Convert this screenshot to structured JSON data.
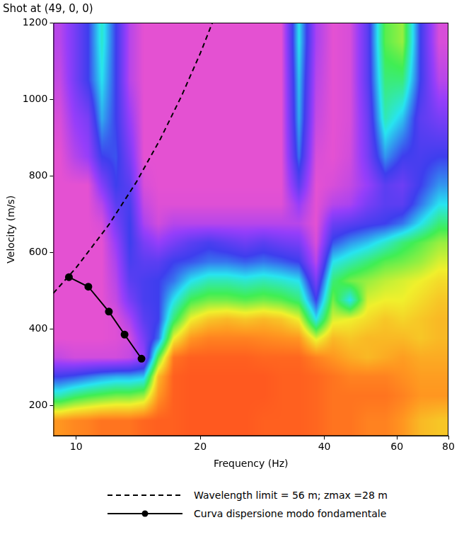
{
  "chart_data": {
    "type": "heatmap",
    "title": "Shot at (49, 0, 0)",
    "x_label": "Frequency (Hz)",
    "y_label": "Velocity (m/s)",
    "log": "x",
    "grid": false,
    "legend": "bottom",
    "xlim": [
      8.8,
      80
    ],
    "xticks": [
      10,
      20,
      40,
      60,
      80
    ],
    "ylim": [
      120,
      1200
    ],
    "yticks": [
      200,
      400,
      600,
      800,
      1000,
      1200
    ],
    "series": [
      {
        "name": "Wavelength limit = 56 m; zmax =28 m",
        "type": "line",
        "color": "#000000",
        "line_style": "dashed",
        "marker": "none",
        "x": [
          8.8,
          10,
          12,
          14,
          16,
          18,
          20,
          21.4
        ],
        "values": [
          493,
          560,
          672,
          784,
          896,
          1008,
          1120,
          1200
        ]
      },
      {
        "name": "Curva dispersione modo fondamentale",
        "type": "line",
        "color": "#000000",
        "line_style": "solid",
        "marker": "circle",
        "x": [
          9.6,
          10.7,
          12.0,
          13.1,
          14.4
        ],
        "values": [
          535,
          510,
          445,
          385,
          322
        ]
      }
    ],
    "heatmap": {
      "x_edges": [
        8.8,
        9.5,
        10.3,
        11.1,
        12,
        13,
        14,
        15.2,
        16.5,
        18,
        20,
        22,
        24.5,
        27,
        30,
        33,
        36.5,
        40,
        44,
        48.5,
        53.5,
        59,
        65,
        72,
        80
      ],
      "y_edges": [
        120,
        200,
        250,
        300,
        350,
        400,
        450,
        500,
        550,
        600,
        650,
        700,
        750,
        800,
        900,
        1000,
        1100,
        1200
      ],
      "value_range": [
        0,
        1
      ],
      "values": [
        [
          0.85,
          0.87,
          0.88,
          0.9,
          0.9,
          0.9,
          0.92,
          0.93,
          0.93,
          0.94,
          0.94,
          0.94,
          0.94,
          0.93,
          0.93,
          0.93,
          0.92,
          0.9,
          0.9,
          0.88,
          0.88,
          0.85,
          0.8,
          0.78
        ],
        [
          0.5,
          0.55,
          0.58,
          0.6,
          0.62,
          0.62,
          0.65,
          0.85,
          0.93,
          0.94,
          0.94,
          0.94,
          0.94,
          0.94,
          0.93,
          0.93,
          0.92,
          0.9,
          0.9,
          0.9,
          0.9,
          0.88,
          0.85,
          0.85
        ],
        [
          0.3,
          0.32,
          0.35,
          0.38,
          0.4,
          0.4,
          0.42,
          0.8,
          0.93,
          0.94,
          0.94,
          0.94,
          0.94,
          0.94,
          0.93,
          0.93,
          0.92,
          0.9,
          0.88,
          0.88,
          0.88,
          0.86,
          0.84,
          0.84
        ],
        [
          0.08,
          0.06,
          0.06,
          0.06,
          0.06,
          0.08,
          0.15,
          0.6,
          0.9,
          0.93,
          0.93,
          0.93,
          0.93,
          0.92,
          0.92,
          0.92,
          0.88,
          0.85,
          0.82,
          0.8,
          0.82,
          0.84,
          0.82,
          0.82
        ],
        [
          0.03,
          0.03,
          0.03,
          0.03,
          0.04,
          0.06,
          0.2,
          0.35,
          0.72,
          0.85,
          0.88,
          0.88,
          0.88,
          0.87,
          0.86,
          0.85,
          0.7,
          0.8,
          0.78,
          0.8,
          0.8,
          0.8,
          0.78,
          0.8
        ],
        [
          0.03,
          0.03,
          0.03,
          0.03,
          0.04,
          0.12,
          0.25,
          0.3,
          0.55,
          0.72,
          0.78,
          0.8,
          0.78,
          0.8,
          0.78,
          0.72,
          0.45,
          0.7,
          0.72,
          0.75,
          0.78,
          0.76,
          0.78,
          0.8
        ],
        [
          0.03,
          0.03,
          0.03,
          0.03,
          0.08,
          0.2,
          0.28,
          0.3,
          0.45,
          0.58,
          0.62,
          0.62,
          0.6,
          0.62,
          0.6,
          0.55,
          0.3,
          0.62,
          0.45,
          0.7,
          0.72,
          0.72,
          0.75,
          0.78
        ],
        [
          0.03,
          0.03,
          0.03,
          0.03,
          0.1,
          0.25,
          0.28,
          0.3,
          0.35,
          0.45,
          0.5,
          0.5,
          0.48,
          0.5,
          0.48,
          0.45,
          0.2,
          0.55,
          0.62,
          0.65,
          0.68,
          0.7,
          0.72,
          0.75
        ],
        [
          0.03,
          0.03,
          0.03,
          0.03,
          0.12,
          0.28,
          0.25,
          0.25,
          0.3,
          0.32,
          0.35,
          0.35,
          0.33,
          0.35,
          0.33,
          0.3,
          0.1,
          0.45,
          0.5,
          0.55,
          0.6,
          0.62,
          0.65,
          0.7
        ],
        [
          0.03,
          0.03,
          0.03,
          0.03,
          0.15,
          0.3,
          0.2,
          0.15,
          0.2,
          0.25,
          0.28,
          0.25,
          0.22,
          0.25,
          0.22,
          0.2,
          0.05,
          0.32,
          0.38,
          0.42,
          0.48,
          0.55,
          0.6,
          0.65
        ],
        [
          0.03,
          0.03,
          0.03,
          0.05,
          0.2,
          0.3,
          0.12,
          0.06,
          0.1,
          0.1,
          0.1,
          0.1,
          0.1,
          0.1,
          0.1,
          0.1,
          0.03,
          0.22,
          0.25,
          0.28,
          0.3,
          0.35,
          0.45,
          0.55
        ],
        [
          0.03,
          0.03,
          0.03,
          0.1,
          0.25,
          0.28,
          0.08,
          0.04,
          0.04,
          0.04,
          0.04,
          0.04,
          0.04,
          0.04,
          0.04,
          0.15,
          0.03,
          0.1,
          0.12,
          0.2,
          0.25,
          0.25,
          0.35,
          0.45
        ],
        [
          0.03,
          0.03,
          0.03,
          0.18,
          0.3,
          0.25,
          0.05,
          0.03,
          0.03,
          0.03,
          0.03,
          0.03,
          0.03,
          0.03,
          0.03,
          0.25,
          0.03,
          0.05,
          0.08,
          0.15,
          0.25,
          0.22,
          0.3,
          0.38
        ],
        [
          0.03,
          0.1,
          0.15,
          0.3,
          0.32,
          0.2,
          0.03,
          0.03,
          0.03,
          0.03,
          0.03,
          0.03,
          0.03,
          0.03,
          0.03,
          0.35,
          0.05,
          0.03,
          0.06,
          0.2,
          0.38,
          0.3,
          0.28,
          0.3
        ],
        [
          0.05,
          0.15,
          0.2,
          0.4,
          0.3,
          0.15,
          0.03,
          0.03,
          0.03,
          0.03,
          0.03,
          0.03,
          0.03,
          0.03,
          0.03,
          0.4,
          0.08,
          0.03,
          0.05,
          0.22,
          0.5,
          0.42,
          0.25,
          0.2
        ],
        [
          0.08,
          0.2,
          0.3,
          0.45,
          0.3,
          0.1,
          0.03,
          0.03,
          0.03,
          0.03,
          0.03,
          0.03,
          0.03,
          0.03,
          0.03,
          0.42,
          0.1,
          0.03,
          0.05,
          0.25,
          0.55,
          0.55,
          0.3,
          0.1
        ],
        [
          0.1,
          0.2,
          0.3,
          0.48,
          0.3,
          0.1,
          0.03,
          0.03,
          0.03,
          0.03,
          0.03,
          0.03,
          0.03,
          0.03,
          0.03,
          0.45,
          0.12,
          0.03,
          0.05,
          0.25,
          0.6,
          0.65,
          0.3,
          0.05
        ]
      ]
    }
  }
}
